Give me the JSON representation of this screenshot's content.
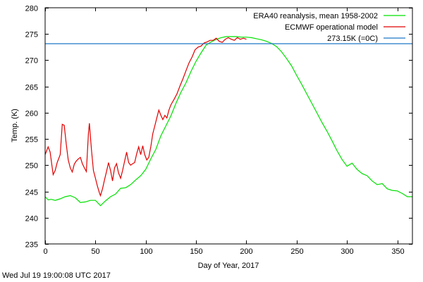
{
  "chart_data": {
    "type": "line",
    "title": "",
    "xlabel": "Day of Year, 2017",
    "ylabel": "Temp. (K)",
    "xlim": [
      0,
      365
    ],
    "ylim": [
      235,
      280
    ],
    "xticks": [
      0,
      50,
      100,
      150,
      200,
      250,
      300,
      350
    ],
    "yticks": [
      235,
      240,
      245,
      250,
      255,
      260,
      265,
      270,
      275,
      280
    ],
    "grid": false,
    "legend_position": "top-right",
    "series": [
      {
        "name": "ERA40 reanalysis, mean 1958-2002",
        "color": "#00e000",
        "x": [
          0,
          3,
          6,
          10,
          15,
          20,
          25,
          30,
          35,
          40,
          45,
          50,
          55,
          60,
          65,
          70,
          75,
          80,
          85,
          90,
          95,
          100,
          105,
          110,
          115,
          120,
          125,
          130,
          135,
          140,
          145,
          150,
          155,
          160,
          165,
          170,
          175,
          180,
          185,
          190,
          195,
          200,
          205,
          210,
          215,
          220,
          225,
          230,
          235,
          240,
          245,
          250,
          255,
          260,
          265,
          270,
          275,
          280,
          285,
          290,
          295,
          300,
          305,
          310,
          315,
          320,
          325,
          330,
          335,
          340,
          345,
          350,
          355,
          360,
          365
        ],
        "y": [
          244.0,
          243.4,
          243.5,
          243.3,
          243.6,
          244.0,
          244.2,
          243.8,
          242.9,
          243.0,
          243.3,
          243.3,
          242.3,
          243.2,
          244.0,
          244.5,
          245.6,
          245.7,
          246.3,
          247.2,
          248.0,
          249.2,
          251.2,
          253.0,
          255.6,
          257.5,
          259.4,
          261.8,
          263.9,
          265.7,
          267.9,
          269.8,
          271.4,
          272.9,
          273.5,
          274.0,
          274.3,
          274.5,
          274.5,
          274.5,
          274.4,
          274.4,
          274.3,
          274.1,
          273.9,
          273.6,
          273.2,
          272.6,
          271.6,
          270.3,
          268.9,
          267.1,
          265.4,
          263.6,
          261.8,
          260.0,
          258.2,
          256.5,
          254.7,
          252.8,
          251.1,
          249.8,
          250.4,
          249.2,
          248.4,
          248.0,
          247.0,
          246.3,
          246.5,
          245.5,
          245.2,
          245.1,
          244.6,
          244.0,
          244.0
        ]
      },
      {
        "name": "ECMWF operational model",
        "color": "#e00000",
        "x": [
          0,
          3,
          5,
          8,
          10,
          12,
          15,
          17,
          19,
          21,
          23,
          25,
          27,
          29,
          31,
          33,
          35,
          37,
          39,
          41,
          43,
          44,
          46,
          48,
          50,
          52,
          54,
          55,
          57,
          59,
          61,
          63,
          65,
          67,
          69,
          71,
          73,
          75,
          77,
          79,
          81,
          83,
          85,
          87,
          89,
          91,
          93,
          95,
          97,
          99,
          101,
          103,
          105,
          107,
          109,
          111,
          113,
          115,
          117,
          119,
          121,
          123,
          125,
          128,
          131,
          134,
          137,
          140,
          143,
          146,
          149,
          152,
          155,
          158,
          161,
          164,
          167,
          170,
          173,
          176,
          179,
          182,
          185,
          188,
          191,
          194,
          197,
          200
        ],
        "y": [
          252.0,
          253.5,
          252.5,
          248.2,
          249.0,
          250.5,
          252.0,
          257.8,
          257.6,
          254.0,
          251.0,
          249.5,
          248.7,
          250.2,
          250.8,
          251.2,
          251.5,
          250.3,
          249.5,
          248.8,
          256.0,
          258.0,
          253.0,
          249.0,
          247.5,
          246.0,
          244.7,
          244.2,
          245.5,
          247.2,
          248.8,
          250.5,
          249.0,
          247.0,
          249.5,
          250.3,
          248.5,
          247.5,
          249.0,
          250.8,
          252.5,
          250.5,
          250.0,
          250.3,
          250.5,
          252.2,
          253.5,
          252.0,
          253.7,
          252.0,
          251.0,
          251.5,
          253.5,
          256.0,
          257.5,
          259.0,
          260.5,
          259.5,
          258.7,
          259.5,
          259.0,
          260.5,
          261.5,
          262.5,
          263.6,
          265.1,
          266.5,
          268.0,
          269.5,
          270.6,
          272.0,
          272.5,
          272.7,
          273.3,
          273.5,
          273.8,
          273.8,
          274.2,
          273.6,
          273.4,
          274.0,
          274.3,
          274.0,
          273.8,
          274.3,
          274.0,
          274.2,
          274.0
        ]
      },
      {
        "name": "273.15K (=0C)",
        "color": "#1f78c8",
        "x": [
          0,
          365
        ],
        "y": [
          273.15,
          273.15
        ]
      }
    ],
    "annotations": [
      "Wed Jul 19 19:00:08 UTC 2017"
    ]
  },
  "timestamp": "Wed Jul 19 19:00:08 UTC 2017"
}
